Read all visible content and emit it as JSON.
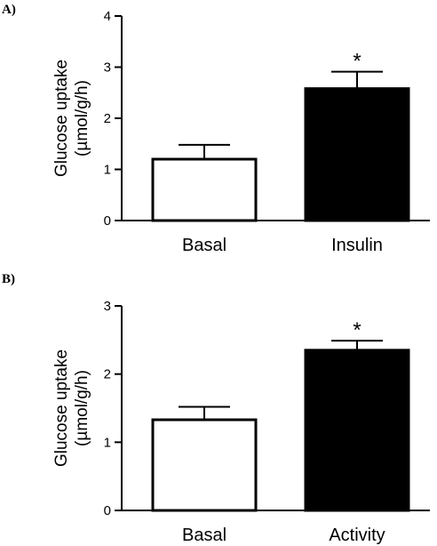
{
  "chart_data": [
    {
      "type": "bar",
      "panel_label": "A)",
      "ylabel_line1": "Glucose uptake",
      "ylabel_line2": "(µmol/g/h)",
      "ylim": [
        0,
        4
      ],
      "yticks": [
        "0",
        "1",
        "2",
        "3",
        "4"
      ],
      "categories": [
        "Basal",
        "Insulin"
      ],
      "values": [
        1.2,
        2.58
      ],
      "errors": [
        0.28,
        0.33
      ],
      "significance": [
        "",
        "*"
      ],
      "bar_colors": [
        "#ffffff",
        "#000000"
      ]
    },
    {
      "type": "bar",
      "panel_label": "B)",
      "ylabel_line1": "Glucose uptake",
      "ylabel_line2": "(µmol/g/h)",
      "ylim": [
        0,
        3
      ],
      "yticks": [
        "0",
        "1",
        "2",
        "3"
      ],
      "categories": [
        "Basal",
        "Activity"
      ],
      "values": [
        1.33,
        2.35
      ],
      "errors": [
        0.19,
        0.14
      ],
      "significance": [
        "",
        "*"
      ],
      "bar_colors": [
        "#ffffff",
        "#000000"
      ]
    }
  ]
}
